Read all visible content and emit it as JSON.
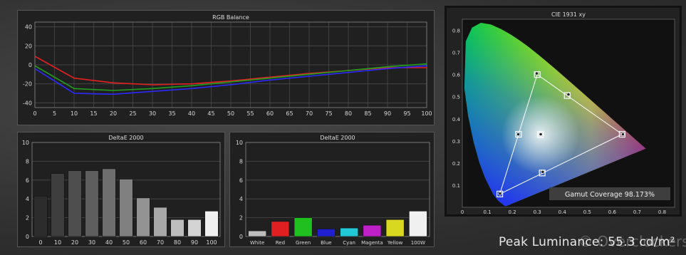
{
  "footer": {
    "peak_label": "Peak Luminance: 55.3 cd/m²",
    "watermark": "© Overclockers.ru"
  },
  "colors": {
    "red": "#e62020",
    "green": "#20a020",
    "blue": "#2a2aff",
    "panel_bg": "#202020",
    "grid": "#4a4a4a",
    "axis_text": "#d8d8d8"
  },
  "chart_data": [
    {
      "id": "rgb",
      "type": "line",
      "title": "RGB Balance",
      "xlabel": "",
      "ylabel": "",
      "xlim": [
        0,
        100
      ],
      "ylim": [
        -45,
        45
      ],
      "xticks": [
        0,
        5,
        10,
        15,
        20,
        25,
        30,
        35,
        40,
        45,
        50,
        55,
        60,
        65,
        70,
        75,
        80,
        85,
        90,
        95,
        100
      ],
      "yticks": [
        40,
        20,
        0,
        -20,
        -40
      ],
      "grid": true,
      "x": [
        0,
        10,
        20,
        30,
        40,
        50,
        60,
        70,
        80,
        90,
        100
      ],
      "series": [
        {
          "color": "#e62020",
          "values": [
            9,
            -14,
            -19,
            -21,
            -20,
            -17,
            -13,
            -9,
            -6,
            -3,
            -3
          ]
        },
        {
          "color": "#20a020",
          "values": [
            -1,
            -25,
            -27,
            -25,
            -22,
            -18,
            -14,
            -10,
            -6,
            -2,
            1
          ]
        },
        {
          "color": "#2a2aff",
          "values": [
            -4,
            -30,
            -31,
            -28,
            -25,
            -21,
            -16,
            -12,
            -8,
            -4,
            -1
          ]
        }
      ]
    },
    {
      "id": "de_gray",
      "type": "bar",
      "title": "DeltaE 2000",
      "ylim": [
        0,
        10
      ],
      "yticks": [
        0,
        2,
        4,
        6,
        8,
        10
      ],
      "grid": true,
      "categories": [
        "0",
        "10",
        "20",
        "30",
        "40",
        "50",
        "60",
        "70",
        "80",
        "90",
        "100"
      ],
      "values": [
        4.3,
        6.7,
        7.0,
        7.0,
        7.2,
        6.1,
        4.1,
        3.1,
        1.8,
        1.8,
        2.7
      ],
      "bar_colors": [
        "#2c2c2c",
        "#3e3e3e",
        "#4e4e4e",
        "#5e5e5e",
        "#6e6e6e",
        "#808080",
        "#939393",
        "#a8a8a8",
        "#bdbdbd",
        "#d4d4d4",
        "#f0f0f0"
      ]
    },
    {
      "id": "de_color",
      "type": "bar",
      "title": "DeltaE 2000",
      "ylim": [
        0,
        10
      ],
      "yticks": [
        0,
        2,
        4,
        6,
        8,
        10
      ],
      "grid": true,
      "categories": [
        "White",
        "Red",
        "Green",
        "Blue",
        "Cyan",
        "Magenta",
        "Yellow",
        "100W"
      ],
      "values": [
        0.6,
        1.6,
        2.0,
        0.8,
        0.9,
        1.2,
        1.8,
        2.7
      ],
      "bar_colors": [
        "#bdbdbd",
        "#e02020",
        "#20c020",
        "#2020d0",
        "#20c8d8",
        "#c020c8",
        "#d8d820",
        "#f0f0f0"
      ]
    },
    {
      "id": "cie",
      "type": "scatter",
      "title": "CIE 1931 xy",
      "xlim": [
        0,
        0.85
      ],
      "ylim": [
        0,
        0.85
      ],
      "xticks": [
        0,
        0.1,
        0.2,
        0.3,
        0.4,
        0.5,
        0.6,
        0.7,
        0.8
      ],
      "yticks": [
        0.1,
        0.2,
        0.3,
        0.4,
        0.5,
        0.6,
        0.7,
        0.8
      ],
      "grid": false,
      "gamut_coverage_label": "Gamut Coverage 98.173%",
      "locus": [
        [
          0.1741,
          0.005
        ],
        [
          0.1738,
          0.0049
        ],
        [
          0.1666,
          0.0089
        ],
        [
          0.144,
          0.0297
        ],
        [
          0.1241,
          0.0578
        ],
        [
          0.0913,
          0.1327
        ],
        [
          0.0687,
          0.2007
        ],
        [
          0.0454,
          0.295
        ],
        [
          0.0235,
          0.4127
        ],
        [
          0.0082,
          0.5384
        ],
        [
          0.0139,
          0.7502
        ],
        [
          0.0389,
          0.812
        ],
        [
          0.0743,
          0.8338
        ],
        [
          0.1142,
          0.8262
        ],
        [
          0.1547,
          0.8059
        ],
        [
          0.1929,
          0.7816
        ],
        [
          0.2296,
          0.7543
        ],
        [
          0.2658,
          0.7243
        ],
        [
          0.3016,
          0.6923
        ],
        [
          0.3373,
          0.6589
        ],
        [
          0.3731,
          0.6245
        ],
        [
          0.4087,
          0.5896
        ],
        [
          0.4441,
          0.5547
        ],
        [
          0.4788,
          0.5202
        ],
        [
          0.5125,
          0.4866
        ],
        [
          0.5448,
          0.4544
        ],
        [
          0.5752,
          0.4242
        ],
        [
          0.6029,
          0.3965
        ],
        [
          0.627,
          0.3725
        ],
        [
          0.6482,
          0.3514
        ],
        [
          0.6658,
          0.334
        ],
        [
          0.6915,
          0.3083
        ],
        [
          0.7347,
          0.2653
        ]
      ],
      "primaries": [
        [
          0.64,
          0.33
        ],
        [
          0.3,
          0.6
        ],
        [
          0.15,
          0.06
        ]
      ],
      "secondaries": [
        [
          0.225,
          0.33
        ],
        [
          0.32,
          0.155
        ],
        [
          0.42,
          0.505
        ]
      ],
      "white_point": [
        0.313,
        0.329
      ],
      "measured": [
        [
          0.643,
          0.33
        ],
        [
          0.298,
          0.605
        ],
        [
          0.151,
          0.062
        ],
        [
          0.224,
          0.33
        ],
        [
          0.322,
          0.16
        ],
        [
          0.425,
          0.51
        ],
        [
          0.314,
          0.33
        ]
      ]
    }
  ]
}
